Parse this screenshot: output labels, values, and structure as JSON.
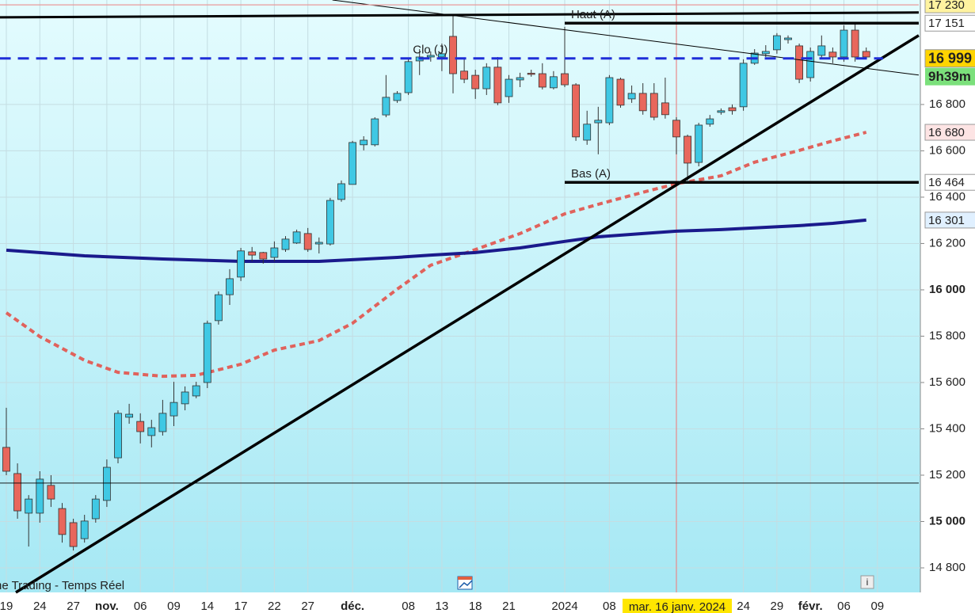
{
  "chart_data": {
    "type": "candlestick",
    "source_label": "ne Trading - Temps Réel",
    "ylim": [
      14694,
      17251
    ],
    "yticks": [
      {
        "value": 14800,
        "label": "14 800"
      },
      {
        "value": 15000,
        "label": "15 000"
      },
      {
        "value": 15200,
        "label": "15 200"
      },
      {
        "value": 15400,
        "label": "15 400"
      },
      {
        "value": 15600,
        "label": "15 600"
      },
      {
        "value": 15800,
        "label": "15 800"
      },
      {
        "value": 16000,
        "label": "16 000"
      },
      {
        "value": 16200,
        "label": "16 200"
      },
      {
        "value": 16400,
        "label": "16 400"
      },
      {
        "value": 16600,
        "label": "16 600"
      },
      {
        "value": 16800,
        "label": "16 800"
      }
    ],
    "grid": true,
    "up_color": "#3fc8e4",
    "down_color": "#e8675c",
    "categories": [
      "19",
      null,
      null,
      "24",
      null,
      null,
      "27",
      null,
      null,
      "nov.",
      null,
      null,
      "06",
      null,
      null,
      "09",
      null,
      null,
      "14",
      null,
      null,
      "17",
      null,
      null,
      "22",
      null,
      null,
      "27",
      null,
      null,
      null,
      "déc.",
      null,
      null,
      null,
      null,
      "08",
      null,
      null,
      "13",
      null,
      null,
      "18",
      null,
      null,
      "21",
      null,
      null,
      null,
      null,
      "2024",
      null,
      null,
      null,
      "08",
      null,
      null,
      null,
      null,
      null,
      null,
      null,
      null,
      null,
      null,
      null,
      "24",
      null,
      null,
      "29",
      null,
      null,
      "févr.",
      null,
      null,
      "06",
      null,
      null,
      "09"
    ],
    "open": [
      15320,
      15207,
      15036,
      15036,
      15156,
      15056,
      14995,
      14926,
      15012,
      15091,
      15275,
      15450,
      15432,
      15371,
      15388,
      15456,
      15508,
      15542,
      15600,
      15867,
      15979,
      16055,
      16164,
      16161,
      16140,
      16174,
      16202,
      16243,
      16198,
      16198,
      16390,
      16455,
      16626,
      16626,
      16755,
      16817,
      16851,
      16988,
      17005,
      17005,
      17094,
      16944,
      16926,
      16868,
      16961,
      16834,
      16906,
      16935,
      16933,
      16872,
      16933,
      16885,
      16646,
      16721,
      16721,
      16909,
      16824,
      16848,
      16848,
      16807,
      16732,
      16663,
      16550,
      16715,
      16766,
      16786,
      16790,
      16978,
      17019,
      17036,
      17080,
      17053,
      16916,
      17012,
      17026,
      17005,
      17121,
      17029,
      null
    ],
    "high": [
      15491,
      15251,
      15114,
      15217,
      15200,
      15080,
      15012,
      15029,
      15114,
      15268,
      15480,
      15508,
      15467,
      15439,
      15525,
      15603,
      15583,
      15603,
      15867,
      15993,
      16089,
      16181,
      16185,
      16164,
      16209,
      16232,
      16260,
      16267,
      16226,
      16397,
      16472,
      16643,
      16663,
      16745,
      16927,
      16858,
      16995,
      17039,
      17029,
      17063,
      17190,
      17002,
      16950,
      16978,
      17005,
      16927,
      16937,
      16950,
      16978,
      16944,
      17135,
      16892,
      16773,
      16790,
      16927,
      16916,
      16882,
      16892,
      16892,
      16916,
      16745,
      16670,
      16721,
      16755,
      16783,
      16800,
      16995,
      17039,
      17056,
      17108,
      17098,
      17063,
      17046,
      17098,
      17046,
      17142,
      17149,
      17046,
      null
    ],
    "low": [
      15200,
      15012,
      14892,
      14995,
      15063,
      14909,
      14875,
      14909,
      14995,
      15063,
      15251,
      15422,
      15337,
      15320,
      15371,
      15412,
      15480,
      15532,
      15576,
      15850,
      15935,
      16038,
      16123,
      16113,
      16123,
      16164,
      16198,
      16164,
      16157,
      16191,
      16380,
      16455,
      16602,
      16619,
      16745,
      16807,
      16841,
      16927,
      16985,
      16944,
      16848,
      16892,
      16824,
      16841,
      16797,
      16807,
      16875,
      16920,
      16865,
      16865,
      16875,
      16643,
      16626,
      16585,
      16711,
      16786,
      16807,
      16756,
      16732,
      16739,
      16585,
      16472,
      16533,
      16704,
      16756,
      16756,
      16773,
      16971,
      17005,
      17019,
      17063,
      16892,
      16899,
      16995,
      16978,
      16985,
      16985,
      16995,
      null
    ],
    "close": [
      15217,
      15046,
      15097,
      15183,
      15097,
      14944,
      14892,
      15002,
      15097,
      15234,
      15467,
      15463,
      15388,
      15405,
      15467,
      15514,
      15559,
      15586,
      15856,
      15979,
      16048,
      16168,
      16150,
      16133,
      16181,
      16219,
      16250,
      16174,
      16205,
      16386,
      16458,
      16636,
      16646,
      16738,
      16831,
      16848,
      16985,
      17005,
      17012,
      17019,
      16933,
      16909,
      16868,
      16961,
      16807,
      16909,
      16916,
      16931,
      16875,
      16920,
      16885,
      16660,
      16715,
      16732,
      16916,
      16797,
      16848,
      16773,
      16745,
      16756,
      16660,
      16547,
      16711,
      16738,
      16773,
      16773,
      16978,
      17022,
      17029,
      17097,
      17087,
      16909,
      17029,
      17053,
      17005,
      17121,
      17005,
      17005,
      null
    ],
    "moving_averages": [
      {
        "color": "#e0625c",
        "dash": true,
        "index": [
          0,
          3,
          7,
          10,
          14,
          17,
          21,
          24,
          28,
          31,
          35,
          38,
          42,
          46,
          50,
          53,
          57,
          60,
          64,
          67,
          71,
          74,
          77
        ],
        "values": [
          15901,
          15798,
          15696,
          15644,
          15627,
          15631,
          15679,
          15740,
          15781,
          15856,
          16003,
          16106,
          16174,
          16243,
          16328,
          16369,
          16421,
          16458,
          16492,
          16551,
          16602,
          16643,
          16680
        ]
      },
      {
        "color": "#1a1a8c",
        "dash": false,
        "index": [
          0,
          7,
          14,
          21,
          28,
          31,
          35,
          38,
          42,
          46,
          50,
          53,
          57,
          60,
          64,
          67,
          71,
          74,
          77
        ],
        "values": [
          16171,
          16147,
          16133,
          16123,
          16123,
          16130,
          16140,
          16150,
          16161,
          16181,
          16209,
          16229,
          16243,
          16253,
          16260,
          16267,
          16277,
          16287,
          16301
        ]
      }
    ],
    "lines": [
      {
        "from": [
          -0.6,
          17176
        ],
        "to": [
          81.7,
          17197
        ],
        "color": "#000000",
        "width": 3
      },
      {
        "from": [
          29.2,
          17251
        ],
        "to": [
          81.7,
          16927
        ],
        "color": "#000000",
        "width": 1
      },
      {
        "from": [
          0.85,
          14694
        ],
        "to": [
          81.7,
          17098
        ],
        "color": "#000000",
        "width": 3.5
      },
      {
        "from": [
          50,
          17151
        ],
        "to": [
          81.7,
          17151
        ],
        "color": "#000000",
        "width": 3.5,
        "label": "Haut (A)"
      },
      {
        "from": [
          50,
          16464
        ],
        "to": [
          81.7,
          16464
        ],
        "color": "#000000",
        "width": 3.5,
        "label": "Bas (A)"
      },
      {
        "from": [
          -0.6,
          15166
        ],
        "to": [
          81.7,
          15166
        ],
        "color": "#000000",
        "width": 0.8
      },
      {
        "from": [
          -0.6,
          17230
        ],
        "to": [
          81.7,
          17230
        ],
        "color": "#e99a9a",
        "width": 1.2
      },
      {
        "from": [
          -0.6,
          16999
        ],
        "to": [
          78.5,
          16999
        ],
        "color": "#1f2ed8",
        "width": 3,
        "dash": true,
        "label": "Clo (J)",
        "label_index": 36.4
      }
    ],
    "price_tags": [
      {
        "value": 17230,
        "label": "17 230",
        "bg": "#fff3a0",
        "fg": "#222222"
      },
      {
        "value": 17151,
        "label": "17 151",
        "bg": "#ffffff",
        "fg": "#222222"
      },
      {
        "value": 16999,
        "label": "16 999",
        "bg": "#ffd400",
        "fg": "#000000",
        "bold": true,
        "sub": "9h39m",
        "sub_bg": "#7be07b"
      },
      {
        "value": 16680,
        "label": "16 680",
        "bg": "#fde4e4",
        "fg": "#e0625c"
      },
      {
        "value": 16464,
        "label": "16 464",
        "bg": "#ffffff",
        "fg": "#222222"
      },
      {
        "value": 16301,
        "label": "16 301",
        "bg": "#e0f0ff",
        "fg": "#1a1a8c"
      }
    ],
    "cursor": {
      "index": 60,
      "label": "mar. 16 janv. 2024",
      "color": "#e88a8a"
    }
  }
}
